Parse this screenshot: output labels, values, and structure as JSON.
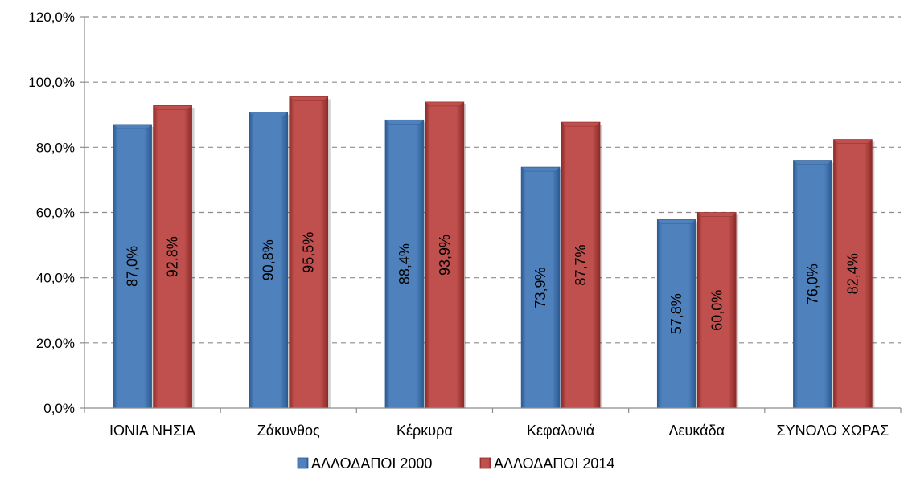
{
  "chart_data": {
    "type": "bar",
    "categories": [
      "ΙΟΝΙΑ ΝΗΣΙΑ",
      "Ζάκυνθος",
      "Κέρκυρα",
      "Κεφαλονιά",
      "Λευκάδα",
      "ΣΥΝΟΛΟ ΧΩΡΑΣ"
    ],
    "series": [
      {
        "name": "ΑΛΛΟΔΑΠΟΙ 2000",
        "values": [
          87.0,
          90.8,
          88.4,
          73.9,
          57.8,
          76.0
        ],
        "labels": [
          "87,0%",
          "90,8%",
          "88,4%",
          "73,9%",
          "57,8%",
          "76,0%"
        ],
        "color": "#4f81bd",
        "dark": "#2c5a92"
      },
      {
        "name": "ΑΛΛΟΔΑΠΟΙ 2014",
        "values": [
          92.8,
          95.5,
          93.9,
          87.7,
          60.0,
          82.4
        ],
        "labels": [
          "92,8%",
          "95,5%",
          "93,9%",
          "87,7%",
          "60,0%",
          "82,4%"
        ],
        "color": "#c0504d",
        "dark": "#8c2a28"
      }
    ],
    "ylim": [
      0,
      120
    ],
    "yticks": [
      0,
      20,
      40,
      60,
      80,
      100,
      120
    ],
    "ytick_labels": [
      "0,0%",
      "20,0%",
      "40,0%",
      "60,0%",
      "80,0%",
      "100,0%",
      "120,0%"
    ],
    "grid": true,
    "legend_position": "bottom",
    "xlabel": "",
    "ylabel": ""
  }
}
